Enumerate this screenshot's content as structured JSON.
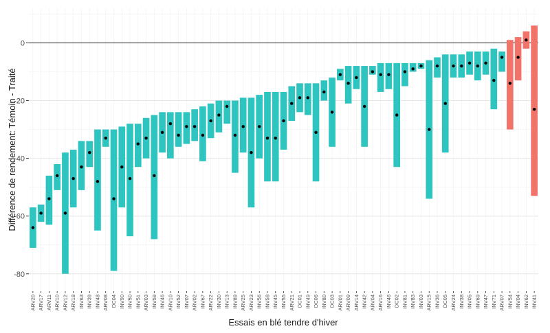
{
  "chart_data": {
    "type": "bar",
    "title": "",
    "xlabel": "Essais en blé tendre d'hiver",
    "ylabel": "Différence de rendement: Témoin - Traité",
    "ylim": [
      -86,
      12
    ],
    "yticks": [
      0,
      -20,
      -40,
      -60,
      -80
    ],
    "grid": true,
    "legend": "none",
    "reference_line": 0,
    "colors": {
      "negative": "#2ec4c0",
      "positive": "#f2736a",
      "point": "#000000",
      "zero_line": "#1a1a1a",
      "grid": "#ebebeb"
    },
    "categories": [
      "ARV20",
      "ARV17",
      "ARV11",
      "ARV10",
      "ARV12",
      "ARV18",
      "INV63",
      "INV39",
      "INV48",
      "ARV08",
      "DC04",
      "INV90",
      "INV50",
      "INV51",
      "ARV03",
      "INV59",
      "INV46",
      "ARV10",
      "INV52",
      "INV07",
      "ARV02",
      "INV67",
      "ARV22",
      "INV30",
      "INV13",
      "INV89",
      "ARV25",
      "ARV23",
      "INV56",
      "INV58",
      "INV45",
      "INV55",
      "ARV21",
      "DC01",
      "INV49",
      "DC06",
      "INV80",
      "DC03",
      "ARV01",
      "ARV09",
      "ARV14",
      "INV42",
      "ARV04",
      "ARV16",
      "INV46",
      "DC02",
      "INV81",
      "INV83",
      "INV03",
      "ARV15",
      "INV36",
      "DC05",
      "ARV24",
      "INV38",
      "INV05",
      "INV69",
      "INV47",
      "INV71",
      "ARV07",
      "INV54",
      "INV04",
      "INV62",
      "INV41"
    ],
    "series": [
      {
        "low": [
          -71,
          -62,
          -63,
          -51,
          -80,
          -57,
          -51,
          -43,
          -65,
          -36,
          -79,
          -57,
          -67,
          -43,
          -40,
          -68,
          -38,
          -40,
          -36,
          -35,
          -34,
          -41,
          -33,
          -31,
          -28,
          -45,
          -38,
          -57,
          -40,
          -48,
          -48,
          -37,
          -27,
          -24,
          -25,
          -48,
          -20,
          -36,
          -13,
          -21,
          -16,
          -36,
          -11,
          -17,
          -16,
          -43,
          -15,
          -10,
          -9,
          -54,
          -12,
          -38,
          -12,
          -12,
          -11,
          -13,
          -11,
          -23,
          -10,
          -30,
          -13,
          -2,
          -53
        ],
        "high": [
          -57,
          -56,
          -46,
          -42,
          -38,
          -37,
          -34,
          -34,
          -30,
          -30,
          -30,
          -29,
          -28,
          -28,
          -26,
          -25,
          -24,
          -24,
          -24,
          -24,
          -23,
          -22,
          -21,
          -20,
          -20,
          -20,
          -19,
          -19,
          -18,
          -17,
          -17,
          -17,
          -15,
          -14,
          -14,
          -14,
          -13,
          -12,
          -9,
          -8,
          -8,
          -8,
          -8,
          -7,
          -7,
          -7,
          -7,
          -7,
          -7,
          -6,
          -5,
          -4,
          -4,
          -4,
          -3,
          -3,
          -3,
          -2,
          -3,
          1,
          2,
          4,
          6
        ],
        "point": [
          -64,
          -59,
          -54,
          -46,
          -59,
          -47,
          -43,
          -38,
          -48,
          -33,
          -54,
          -43,
          -47,
          -35,
          -33,
          -46,
          -31,
          -28,
          -32,
          -29,
          -29,
          -32,
          -27,
          -25,
          -22,
          -32,
          -29,
          -38,
          -29,
          -33,
          -33,
          -27,
          -21,
          -19,
          -19,
          -31,
          -17,
          -24,
          -11,
          -14,
          -12,
          -22,
          -10,
          -11,
          -11,
          -25,
          -10,
          -9,
          -8,
          -30,
          -8,
          -21,
          -8,
          -8,
          -7,
          -8,
          -7,
          -13,
          -5,
          -14,
          -5,
          1,
          -23
        ]
      }
    ]
  }
}
